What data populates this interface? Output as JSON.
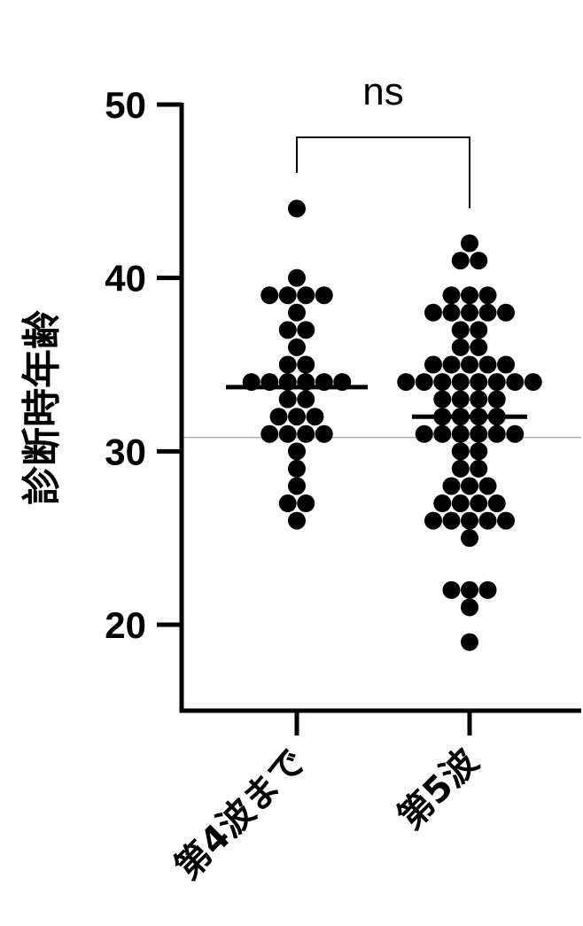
{
  "chart_data": {
    "type": "scatter",
    "title": "",
    "ylabel": "診断時年齢",
    "xlabel": "",
    "ylim": [
      15,
      50
    ],
    "yticks": [
      20,
      30,
      40,
      50
    ],
    "grid": false,
    "reference_line": 30.8,
    "categories": [
      "第4波まで",
      "第5波"
    ],
    "series": [
      {
        "values": [
          44,
          40,
          39,
          39,
          39,
          39,
          38,
          37,
          37,
          36,
          35,
          35,
          34,
          34,
          34,
          34,
          34,
          34,
          33,
          33,
          32,
          32,
          32,
          31,
          31,
          31,
          31,
          30,
          29,
          28,
          27,
          27,
          26
        ],
        "median": 33.7
      },
      {
        "values": [
          42,
          41,
          41,
          39,
          39,
          39,
          38,
          38,
          38,
          38,
          38,
          37,
          37,
          36,
          36,
          35,
          35,
          35,
          35,
          35,
          34,
          34,
          34,
          34,
          34,
          34,
          34,
          34,
          33,
          33,
          33,
          33,
          32,
          32,
          32,
          32,
          31,
          31,
          31,
          31,
          31,
          31,
          30,
          30,
          29,
          29,
          28,
          28,
          28,
          27,
          27,
          27,
          27,
          26,
          26,
          26,
          26,
          26,
          25,
          22,
          22,
          22,
          21,
          19
        ],
        "median": 32
      }
    ],
    "comparison": {
      "label": "ns",
      "between": [
        0,
        1
      ]
    }
  }
}
